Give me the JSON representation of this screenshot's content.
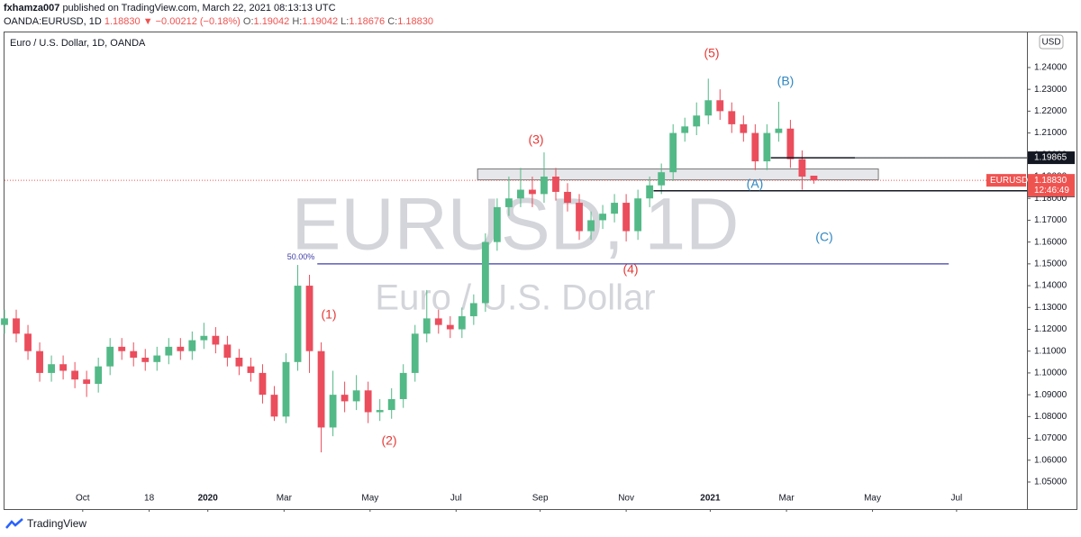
{
  "header": {
    "author": "fxhamza007",
    "published": "published on TradingView.com, March 22, 2021 08:13:13 UTC",
    "symbol": "OANDA:EURUSD, 1D",
    "price": "1.18830",
    "change": "▼ −0.00212 (−0.18%)",
    "ohlc": [
      {
        "label": "O:",
        "value": "1.19042"
      },
      {
        "label": "H:",
        "value": "1.19042"
      },
      {
        "label": "L:",
        "value": "1.18676"
      },
      {
        "label": "C:",
        "value": "1.18830"
      }
    ]
  },
  "chart_data": {
    "type": "candlestick",
    "title": "Euro / U.S. Dollar, 1D, OANDA",
    "watermark": "EURUSD, 1D",
    "watermark_sub": "Euro / U.S. Dollar",
    "currency": "USD",
    "up_color": "#53b987",
    "down_color": "#eb4d5c",
    "xlim": [
      0,
      523
    ],
    "ylim": [
      1.0376,
      1.2565
    ],
    "xticks": [
      {
        "value": 40,
        "label": "Oct"
      },
      {
        "value": 74,
        "label": "18"
      },
      {
        "value": 104,
        "label": "2020"
      },
      {
        "value": 143,
        "label": "Mar"
      },
      {
        "value": 187,
        "label": "May"
      },
      {
        "value": 231,
        "label": "Jul"
      },
      {
        "value": 274,
        "label": "Sep"
      },
      {
        "value": 318,
        "label": "Nov"
      },
      {
        "value": 361,
        "label": "2021"
      },
      {
        "value": 400,
        "label": "Mar"
      },
      {
        "value": 444,
        "label": "May"
      },
      {
        "value": 487,
        "label": "Jul"
      }
    ],
    "yticks": [
      {
        "value": 1.05,
        "label": "1.05000"
      },
      {
        "value": 1.06,
        "label": "1.06000"
      },
      {
        "value": 1.07,
        "label": "1.07000"
      },
      {
        "value": 1.08,
        "label": "1.08000"
      },
      {
        "value": 1.09,
        "label": "1.09000"
      },
      {
        "value": 1.1,
        "label": "1.10000"
      },
      {
        "value": 1.11,
        "label": "1.11000"
      },
      {
        "value": 1.12,
        "label": "1.12000"
      },
      {
        "value": 1.13,
        "label": "1.13000"
      },
      {
        "value": 1.14,
        "label": "1.14000"
      },
      {
        "value": 1.15,
        "label": "1.15000"
      },
      {
        "value": 1.16,
        "label": "1.16000"
      },
      {
        "value": 1.17,
        "label": "1.17000"
      },
      {
        "value": 1.18,
        "label": "1.18000"
      },
      {
        "value": 1.19,
        "label": "1.19000"
      },
      {
        "value": 1.2,
        "label": "1.20000"
      },
      {
        "value": 1.21,
        "label": "1.21000"
      },
      {
        "value": 1.22,
        "label": "1.22000"
      },
      {
        "value": 1.23,
        "label": "1.23000"
      },
      {
        "value": 1.24,
        "label": "1.24000"
      }
    ],
    "x": [
      0,
      6,
      12,
      18,
      24,
      30,
      36,
      42,
      48,
      54,
      60,
      66,
      72,
      78,
      84,
      90,
      96,
      102,
      108,
      114,
      120,
      126,
      132,
      138,
      144,
      150,
      156,
      162,
      168,
      174,
      180,
      186,
      192,
      198,
      204,
      210,
      216,
      222,
      228,
      234,
      240,
      246,
      252,
      258,
      264,
      270,
      276,
      282,
      288,
      294,
      300,
      306,
      312,
      318,
      324,
      330,
      336,
      342,
      348,
      354,
      360,
      366,
      372,
      378,
      384,
      390,
      396,
      402,
      408,
      414
    ],
    "open": [
      1.122,
      1.125,
      1.118,
      1.11,
      1.1,
      1.104,
      1.101,
      1.097,
      1.095,
      1.103,
      1.112,
      1.11,
      1.107,
      1.105,
      1.108,
      1.112,
      1.11,
      1.115,
      1.117,
      1.113,
      1.107,
      1.103,
      1.1,
      1.09,
      1.08,
      1.105,
      1.14,
      1.11,
      1.075,
      1.09,
      1.087,
      1.092,
      1.082,
      1.083,
      1.088,
      1.1,
      1.118,
      1.125,
      1.122,
      1.12,
      1.126,
      1.132,
      1.16,
      1.176,
      1.18,
      1.184,
      1.182,
      1.19,
      1.183,
      1.178,
      1.165,
      1.17,
      1.173,
      1.178,
      1.165,
      1.18,
      1.186,
      1.192,
      1.21,
      1.213,
      1.218,
      1.225,
      1.22,
      1.214,
      1.21,
      1.197,
      1.21,
      1.212,
      1.198,
      1.19042
    ],
    "high": [
      1.129,
      1.129,
      1.122,
      1.114,
      1.108,
      1.108,
      1.105,
      1.101,
      1.107,
      1.116,
      1.116,
      1.114,
      1.111,
      1.112,
      1.116,
      1.116,
      1.119,
      1.123,
      1.121,
      1.117,
      1.111,
      1.107,
      1.104,
      1.094,
      1.109,
      1.1495,
      1.145,
      1.114,
      1.101,
      1.096,
      1.099,
      1.096,
      1.088,
      1.093,
      1.104,
      1.122,
      1.138,
      1.129,
      1.126,
      1.13,
      1.136,
      1.164,
      1.18,
      1.19,
      1.194,
      1.19,
      1.2011,
      1.194,
      1.187,
      1.182,
      1.174,
      1.177,
      1.182,
      1.182,
      1.184,
      1.19,
      1.196,
      1.214,
      1.217,
      1.224,
      1.2349,
      1.23,
      1.224,
      1.218,
      1.214,
      1.214,
      1.2243,
      1.216,
      1.202,
      1.19042
    ],
    "low": [
      1.118,
      1.114,
      1.106,
      1.096,
      1.096,
      1.097,
      1.093,
      1.089,
      1.091,
      1.099,
      1.106,
      1.103,
      1.101,
      1.101,
      1.104,
      1.106,
      1.106,
      1.111,
      1.109,
      1.103,
      1.099,
      1.096,
      1.086,
      1.078,
      1.077,
      1.101,
      1.1,
      1.0636,
      1.071,
      1.082,
      1.083,
      1.077,
      1.078,
      1.079,
      1.084,
      1.096,
      1.114,
      1.118,
      1.116,
      1.116,
      1.122,
      1.128,
      1.156,
      1.172,
      1.176,
      1.176,
      1.178,
      1.179,
      1.174,
      1.161,
      1.161,
      1.166,
      1.169,
      1.1603,
      1.161,
      1.176,
      1.182,
      1.188,
      1.206,
      1.209,
      1.214,
      1.216,
      1.21,
      1.206,
      1.193,
      1.193,
      1.206,
      1.194,
      1.184,
      1.18676
    ],
    "close": [
      1.125,
      1.118,
      1.11,
      1.1,
      1.104,
      1.101,
      1.097,
      1.095,
      1.103,
      1.112,
      1.11,
      1.107,
      1.105,
      1.108,
      1.112,
      1.11,
      1.115,
      1.117,
      1.113,
      1.107,
      1.103,
      1.1,
      1.09,
      1.08,
      1.105,
      1.14,
      1.11,
      1.075,
      1.09,
      1.087,
      1.092,
      1.082,
      1.083,
      1.088,
      1.1,
      1.118,
      1.125,
      1.122,
      1.12,
      1.126,
      1.132,
      1.16,
      1.176,
      1.18,
      1.184,
      1.182,
      1.19,
      1.183,
      1.178,
      1.165,
      1.17,
      1.173,
      1.178,
      1.165,
      1.18,
      1.186,
      1.192,
      1.21,
      1.213,
      1.218,
      1.225,
      1.22,
      1.214,
      1.21,
      1.197,
      1.21,
      1.212,
      1.198,
      1.19,
      1.1883
    ],
    "zone": {
      "x": [
        242,
        447
      ],
      "y": [
        1.1885,
        1.1935
      ]
    },
    "fib": {
      "value": 1.15,
      "label": "50.00%",
      "x": [
        160,
        483
      ],
      "color": "#3f3fa8"
    },
    "hlines": [
      {
        "value": 1.19865,
        "x": [
          392,
          435
        ]
      },
      {
        "value": 1.1835,
        "x": [
          332,
          523
        ]
      }
    ],
    "last": {
      "value": 1.1883,
      "label": "1.18830",
      "symbol": "EURUSD",
      "countdown": "12:46:49"
    },
    "annotations": [
      {
        "text": "(1)",
        "color": "#e53935"
      },
      {
        "text": "(2)",
        "color": "#e53935"
      },
      {
        "text": "(3)",
        "color": "#e53935"
      },
      {
        "text": "(4)",
        "color": "#e53935"
      },
      {
        "text": "(5)",
        "color": "#e53935"
      },
      {
        "text": "(A)",
        "color": "#2e86c1"
      },
      {
        "text": "(B)",
        "color": "#2e86c1"
      },
      {
        "text": "(C)",
        "color": "#2e86c1"
      }
    ]
  },
  "footer": {
    "brand": "TradingView"
  }
}
